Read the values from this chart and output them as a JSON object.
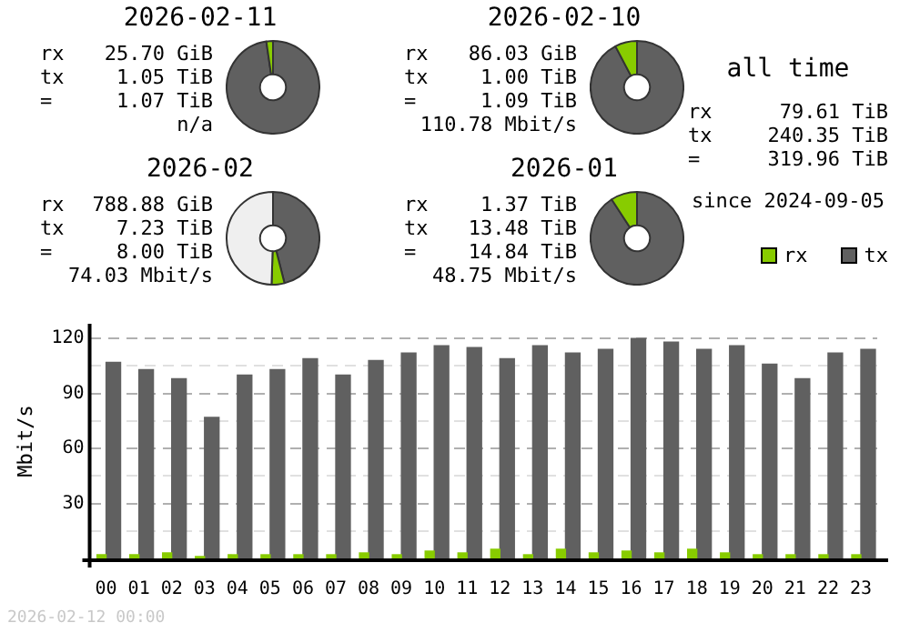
{
  "chart_data": [
    {
      "type": "donut",
      "title": "2026-02-11",
      "categories": [
        null,
        null
      ],
      "values": [
        97.7,
        2.3
      ],
      "colors": [
        "#606060",
        "#88cc00"
      ],
      "annotations": [
        "rx",
        "25.70 GiB",
        "tx",
        "1.05 TiB",
        "=",
        "1.07 TiB",
        "n/a"
      ]
    },
    {
      "type": "donut",
      "title": "2026-02-10",
      "categories": [
        null,
        null
      ],
      "values": [
        92.3,
        7.7
      ],
      "colors": [
        "#606060",
        "#88cc00"
      ],
      "annotations": [
        "rx",
        "86.03 GiB",
        "tx",
        "1.00 TiB",
        "=",
        "1.09 TiB",
        "110.78 Mbit/s"
      ]
    },
    {
      "type": "donut",
      "title": "2026-02",
      "categories": [
        null,
        null,
        null
      ],
      "values": [
        46,
        4.5,
        49.5
      ],
      "colors": [
        "#606060",
        "#88cc00",
        "#efefef"
      ],
      "annotations": [
        "rx",
        "788.88 GiB",
        "tx",
        "7.23 TiB",
        "=",
        "8.00 TiB",
        "74.03 Mbit/s"
      ]
    },
    {
      "type": "donut",
      "title": "2026-01",
      "categories": [
        null,
        null
      ],
      "values": [
        90.8,
        9.2
      ],
      "colors": [
        "#606060",
        "#88cc00"
      ],
      "annotations": [
        "rx",
        "1.37 TiB",
        "tx",
        "13.48 TiB",
        "=",
        "14.84 TiB",
        "48.75 Mbit/s"
      ]
    },
    {
      "type": "other",
      "title": "all time",
      "annotations": [
        "rx",
        "79.61 TiB",
        "tx",
        "240.35 TiB",
        "=",
        "319.96 TiB",
        "since 2024-09-05"
      ]
    },
    {
      "type": "bar",
      "ylabel": "Mbit/s",
      "legend": "top right",
      "grid": "y",
      "categories": [
        "00",
        "01",
        "02",
        "03",
        "04",
        "05",
        "06",
        "07",
        "08",
        "09",
        "10",
        "11",
        "12",
        "13",
        "14",
        "15",
        "16",
        "17",
        "18",
        "19",
        "20",
        "21",
        "22",
        "23"
      ],
      "series": [
        {
          "name": "rx",
          "color": "#88cc00",
          "values": [
            2,
            2,
            3,
            1,
            2,
            2,
            2,
            2,
            3,
            2,
            4,
            3,
            5,
            2,
            5,
            3,
            4,
            3,
            5,
            3,
            2,
            2,
            2,
            2
          ]
        },
        {
          "name": "tx",
          "color": "#606060",
          "values": [
            107,
            103,
            98,
            77,
            100,
            103,
            109,
            100,
            108,
            112,
            116,
            115,
            109,
            116,
            112,
            114,
            120,
            118,
            114,
            116,
            106,
            98,
            112,
            114
          ]
        }
      ],
      "ylim": [
        0,
        128
      ],
      "yticks": [
        {
          "value": 15,
          "label": null
        },
        30,
        {
          "value": 45,
          "label": null
        },
        60,
        {
          "value": 75,
          "label": null
        },
        90,
        {
          "value": 105,
          "label": null
        },
        120
      ],
      "annotations": [
        "2026-02-12 00:00"
      ]
    }
  ]
}
